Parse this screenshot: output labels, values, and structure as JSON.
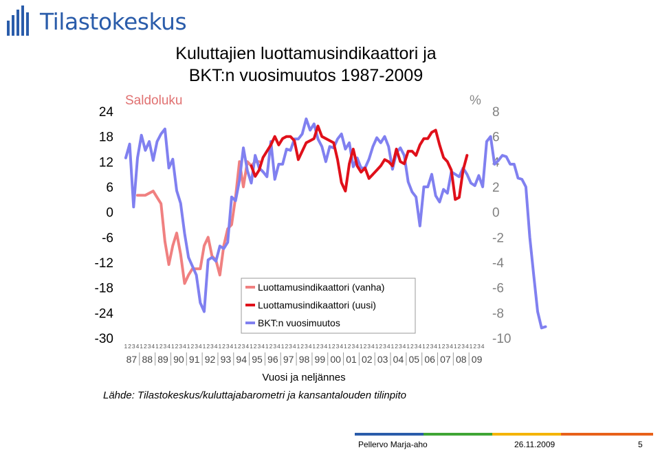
{
  "header": {
    "logo_text": "Tilastokeskus",
    "title_line1": "Kuluttajien luottamusindikaattori ja",
    "title_line2": "BKT:n vuosimuutos 1987-2009"
  },
  "footer": {
    "author": "Pellervo Marja-aho",
    "date": "26.11.2009",
    "page": "5",
    "colors": [
      "#2a5caa",
      "#3fa535",
      "#f4b400",
      "#e8611a"
    ]
  },
  "chart_data": {
    "type": "line",
    "left_axis_title": "Saldoluku",
    "right_axis_title": "%",
    "xlabel": "Vuosi ja neljännes",
    "source": "Lähde: Tilastokeskus/kuluttajabarometri ja kansantalouden tilinpito",
    "left_ylim": [
      -30,
      24
    ],
    "right_ylim": [
      -10,
      8
    ],
    "left_ticks": [
      "24",
      "18",
      "12",
      "6",
      "0",
      "-6",
      "-12",
      "-18",
      "-24",
      "-30"
    ],
    "right_ticks": [
      "8",
      "6",
      "4",
      "2",
      "0",
      "-2",
      "-4",
      "-6",
      "-8",
      "-10"
    ],
    "quarter_labels": [
      "1",
      "2",
      "3",
      "4"
    ],
    "years": [
      "87",
      "88",
      "89",
      "90",
      "91",
      "92",
      "93",
      "94",
      "95",
      "96",
      "97",
      "98",
      "99",
      "00",
      "01",
      "02",
      "03",
      "04",
      "05",
      "06",
      "07",
      "08",
      "09"
    ],
    "legend_position": "bottom-center",
    "series": [
      {
        "name": "Luottamusindikaattori (vanha)",
        "axis": "left",
        "color": "#f08080",
        "start_index": 3,
        "values": [
          4,
          4,
          4,
          4.5,
          5,
          3.5,
          2,
          -7,
          -12.5,
          -8,
          -5,
          -10,
          -17,
          -15,
          -13.5,
          -13.5,
          -13.5,
          -8,
          -6,
          -10.5,
          -11.5,
          -15,
          -8,
          -4,
          -3,
          3.5,
          12,
          6,
          12,
          11,
          12,
          12
        ]
      },
      {
        "name": "Luottamusindikaattori (uusi)",
        "axis": "left",
        "color": "#e0101a",
        "start_index": 32,
        "values": [
          11,
          8.5,
          10,
          13,
          14.5,
          16,
          18,
          16,
          17.5,
          18,
          18,
          17,
          12.5,
          14.5,
          16.5,
          17,
          17.5,
          20.5,
          18,
          17.5,
          17,
          16.5,
          12.5,
          7,
          5,
          11.5,
          15,
          11,
          9.5,
          10.5,
          8,
          9,
          10,
          11,
          12.5,
          12,
          11,
          15,
          12,
          11.5,
          14.5,
          14.5,
          13.5,
          16,
          17.5,
          17.5,
          19,
          19.5,
          16,
          13,
          12,
          10,
          3,
          3.5,
          10,
          13.5
        ]
      },
      {
        "name": "BKT:n vuosimuutos",
        "axis": "right",
        "color": "#8080f0",
        "start_index": 0,
        "values": [
          4.3,
          5.4,
          0.4,
          4.3,
          6.1,
          4.9,
          5.6,
          4.1,
          5.6,
          6.2,
          6.6,
          3.5,
          4.2,
          1.7,
          0.7,
          -1.7,
          -3.6,
          -4.3,
          -5,
          -7.2,
          -7.9,
          -3.8,
          -3.6,
          -3.9,
          -2.7,
          -2.9,
          -2.4,
          1.2,
          0.9,
          2.5,
          5.1,
          3.3,
          2.3,
          4.5,
          3.5,
          3.2,
          2.8,
          5.6,
          2.6,
          3.8,
          3.8,
          5,
          4.9,
          5.8,
          5.8,
          6.2,
          7.4,
          6.5,
          7,
          5.8,
          5.2,
          4,
          5.2,
          5.1,
          5.8,
          6.2,
          5,
          5.5,
          3.6,
          4.3,
          3.5,
          3.5,
          4.2,
          5.2,
          5.9,
          5.5,
          6,
          5.2,
          3.4,
          4.7,
          5.1,
          4.5,
          2.4,
          1.6,
          1.2,
          -1.1,
          2,
          2,
          3,
          1.3,
          0.8,
          1.8,
          1.5,
          3.2,
          3,
          2.8,
          3.5,
          3,
          2.3,
          2.1,
          2.9,
          2,
          5.6,
          6,
          3.8,
          4.1,
          4.5,
          4.4,
          3.8,
          3.8,
          2.7,
          2.6,
          2,
          -2,
          -5,
          -7.9,
          -9.2,
          -9.1
        ]
      }
    ]
  }
}
